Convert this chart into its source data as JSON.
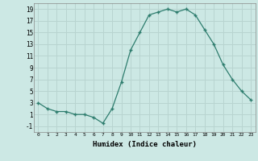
{
  "x": [
    0,
    1,
    2,
    3,
    4,
    5,
    6,
    7,
    8,
    9,
    10,
    11,
    12,
    13,
    14,
    15,
    16,
    17,
    18,
    19,
    20,
    21,
    22,
    23
  ],
  "y": [
    3,
    2,
    1.5,
    1.5,
    1,
    1,
    0.5,
    -0.5,
    2,
    6.5,
    12,
    15,
    18,
    18.5,
    19,
    18.5,
    19,
    18,
    15.5,
    13,
    9.5,
    7,
    5,
    3.5
  ],
  "line_color": "#2e7d6e",
  "marker_color": "#2e7d6e",
  "bg_color": "#cce8e4",
  "grid_color": "#b8d4d0",
  "xlabel": "Humidex (Indice chaleur)",
  "xlim": [
    -0.5,
    23.5
  ],
  "ylim": [
    -2,
    20
  ],
  "yticks": [
    -1,
    1,
    3,
    5,
    7,
    9,
    11,
    13,
    15,
    17,
    19
  ],
  "xticks": [
    0,
    1,
    2,
    3,
    4,
    5,
    6,
    7,
    8,
    9,
    10,
    11,
    12,
    13,
    14,
    15,
    16,
    17,
    18,
    19,
    20,
    21,
    22,
    23
  ]
}
